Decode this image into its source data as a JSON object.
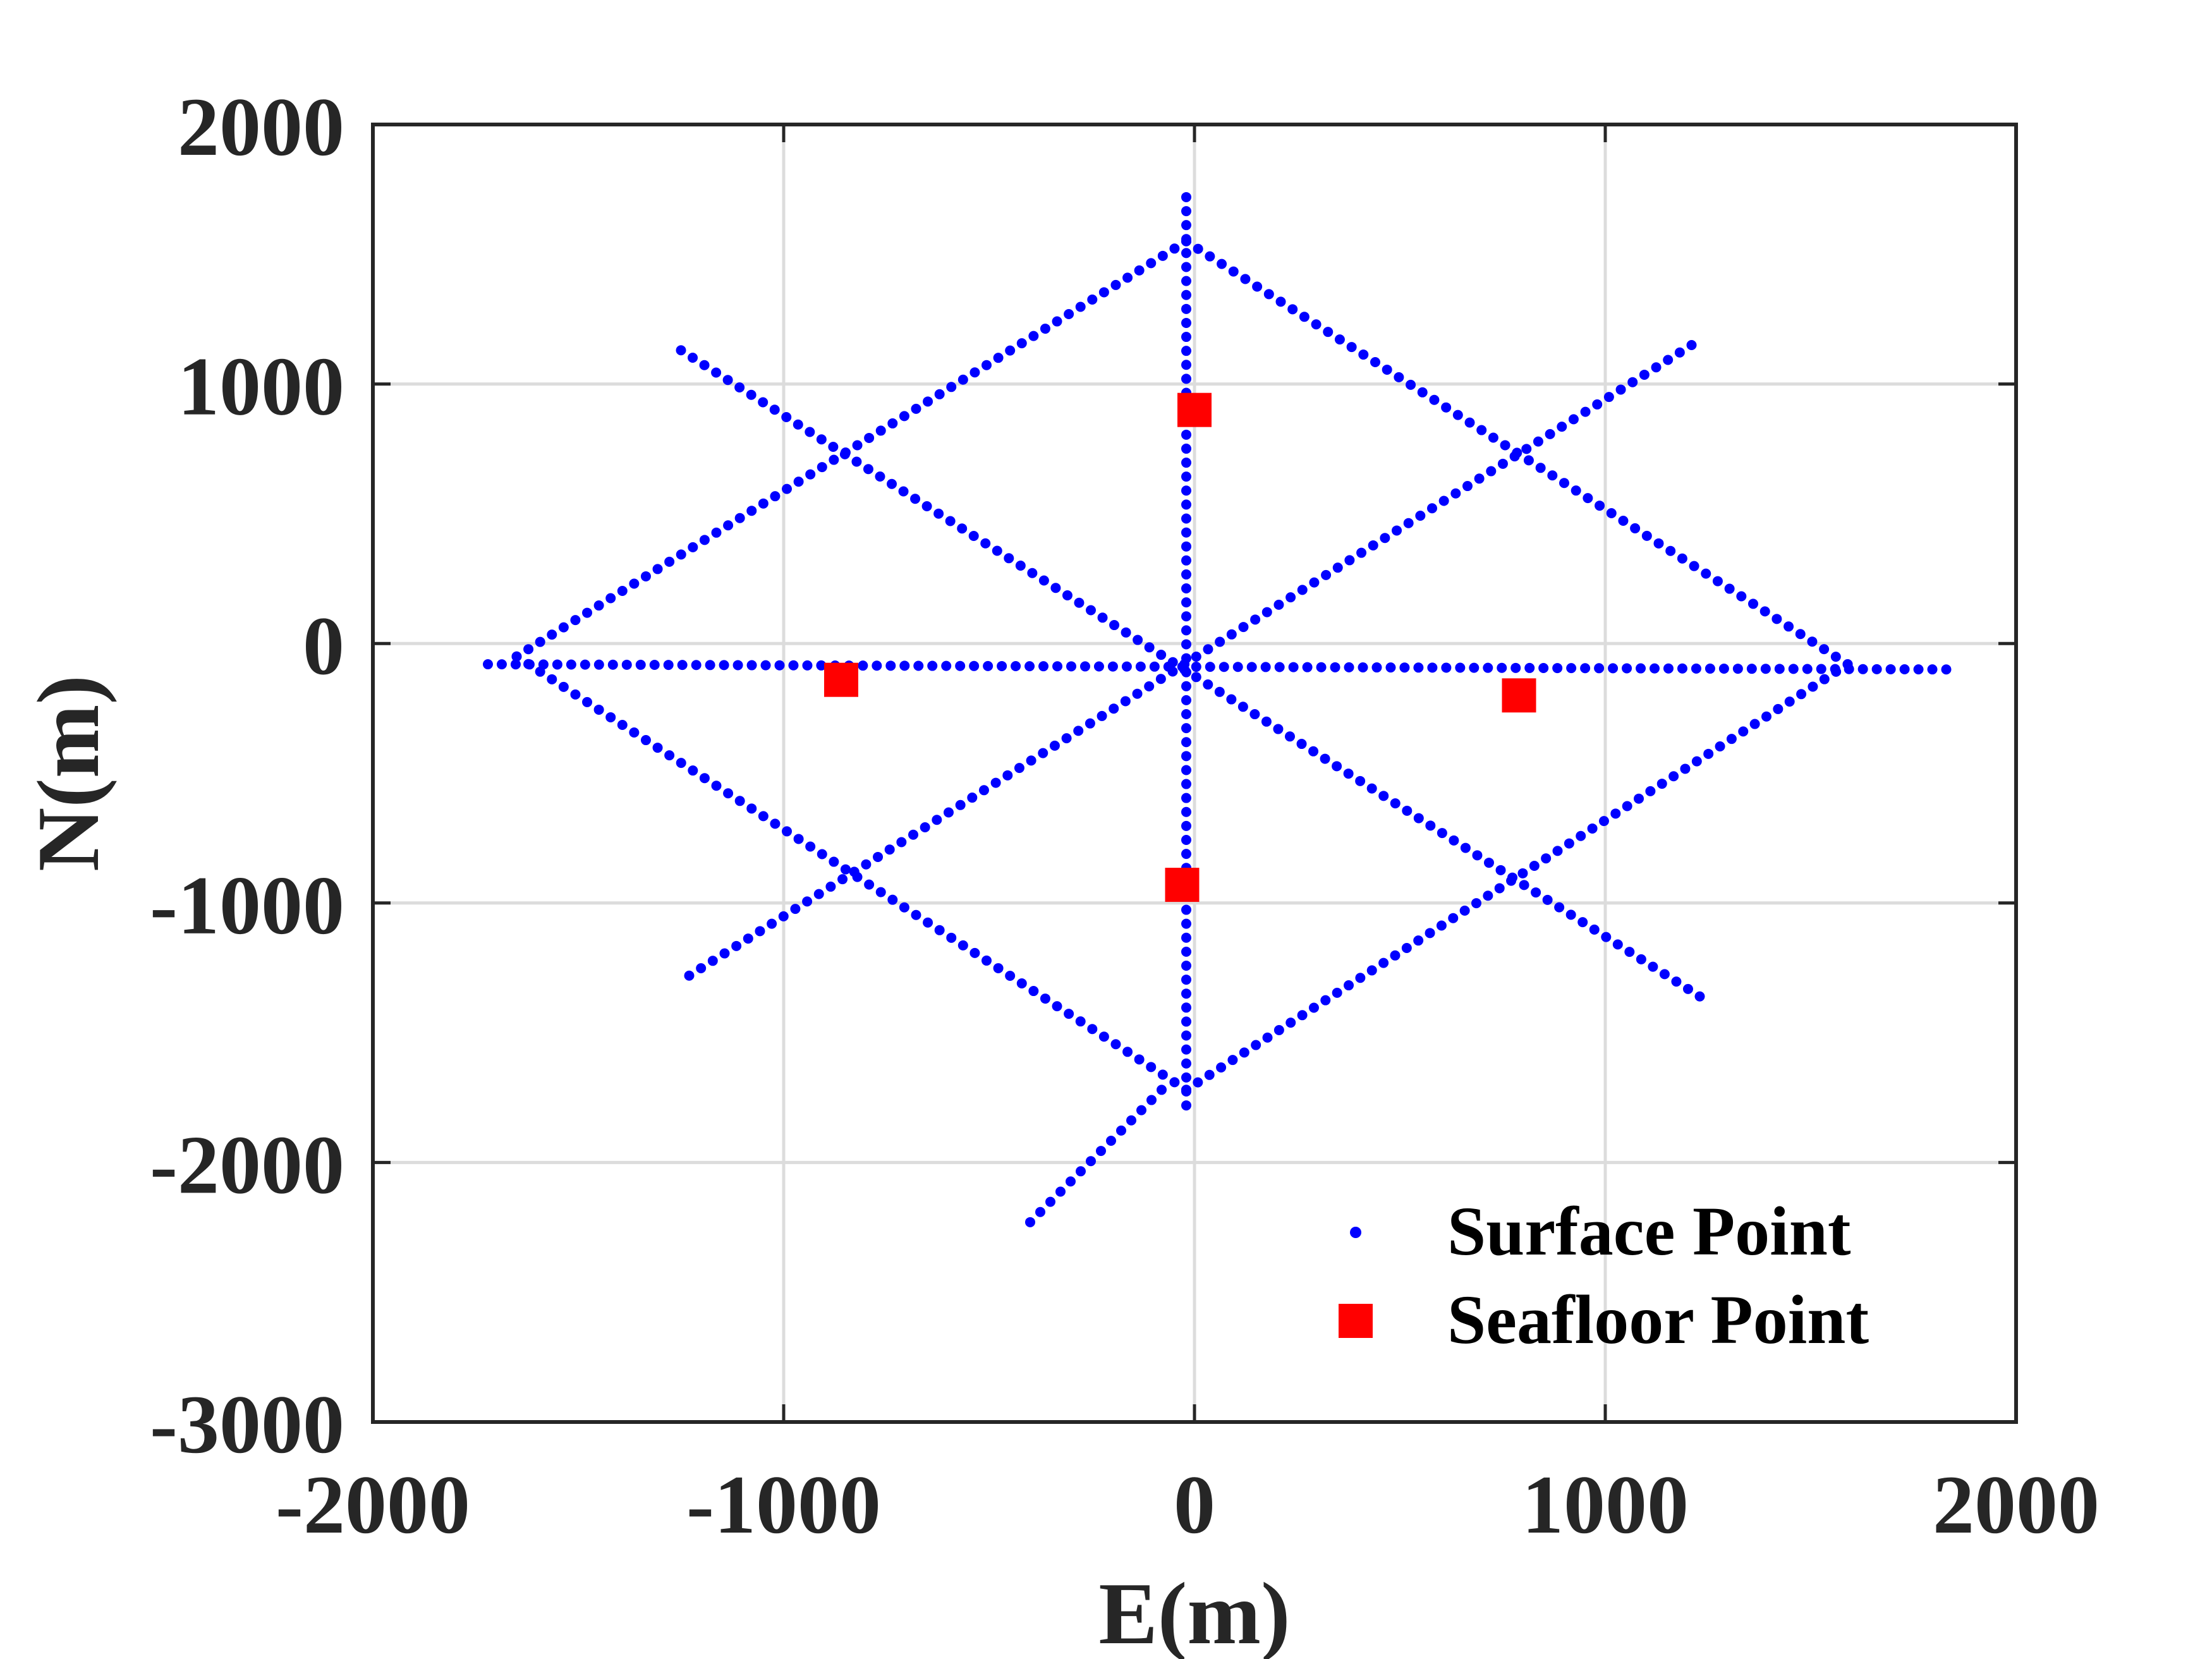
{
  "chart_data": {
    "type": "scatter",
    "xlabel": "E(m)",
    "ylabel": "N(m)",
    "xlim": [
      -2000,
      2000
    ],
    "ylim": [
      -3000,
      2000
    ],
    "x_ticks": [
      -2000,
      -1000,
      0,
      1000,
      2000
    ],
    "y_ticks": [
      -3000,
      -2000,
      -1000,
      0,
      1000,
      2000
    ],
    "x_tick_labels": [
      "-2000",
      "-1000",
      "0",
      "1000",
      "2000"
    ],
    "y_tick_labels": [
      "-3000",
      "-2000",
      "-1000",
      "0",
      "1000",
      "2000"
    ],
    "grid": true,
    "legend_position": "bottom-right",
    "series": [
      {
        "name": "Surface Point",
        "marker": "dot",
        "color": "#0000ff",
        "tracks": [
          {
            "from": [
              -1720,
              -80
            ],
            "to": [
              1830,
              -100
            ]
          },
          {
            "from": [
              -1250,
              1130
            ],
            "to": [
              1230,
              -1360
            ]
          },
          {
            "from": [
              -1230,
              -1280
            ],
            "to": [
              1210,
              1150
            ]
          },
          {
            "from": [
              -20,
              1720
            ],
            "to": [
              -20,
              -1780
            ]
          },
          {
            "from": [
              -1650,
              -50
            ],
            "to": [
              -20,
              1550
            ]
          },
          {
            "from": [
              -20,
              1550
            ],
            "to": [
              1590,
              -80
            ]
          },
          {
            "from": [
              1590,
              -80
            ],
            "to": [
              -20,
              -1720
            ]
          },
          {
            "from": [
              -20,
              -1720
            ],
            "to": [
              -1650,
              -50
            ]
          },
          {
            "from": [
              -80,
              -1720
            ],
            "to": [
              -400,
              -2230
            ]
          }
        ]
      },
      {
        "name": "Seafloor Point",
        "marker": "square",
        "color": "#ff0000",
        "x": [
          0,
          -860,
          790,
          -30
        ],
        "y": [
          900,
          -140,
          -200,
          -930
        ]
      }
    ]
  }
}
